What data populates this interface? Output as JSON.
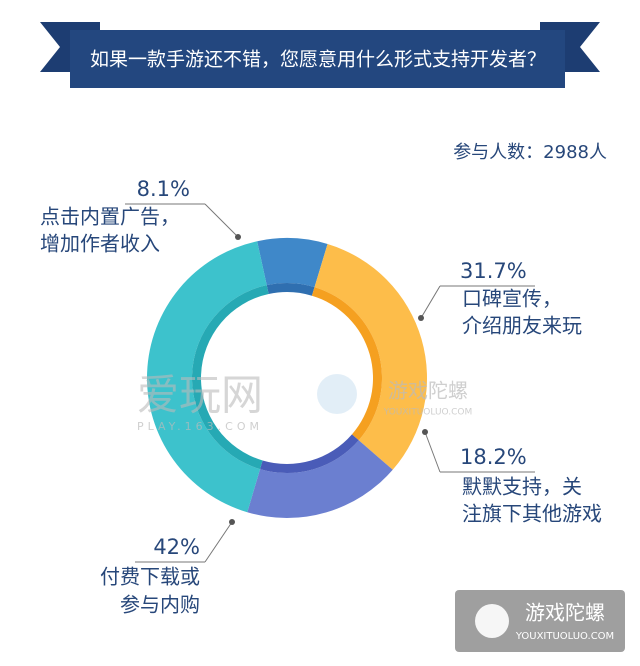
{
  "chart_data": {
    "type": "donut",
    "title": "如果一款手游还不错，您愿意用什么形式支持开发者？",
    "subtitle": "参与人数：2988人",
    "categories": [
      [
        "点击内置广告，",
        "增加作者收入"
      ],
      [
        "口碑宣传，",
        "介绍朋友来玩"
      ],
      [
        "默默支持，关",
        "注旗下其他游戏"
      ],
      [
        "付费下载或",
        "参与内购"
      ]
    ],
    "values": [
      8.1,
      31.7,
      18.2,
      42
    ],
    "value_labels": [
      "8.1%",
      "31.7%",
      "18.2%",
      "42%"
    ],
    "colors": [
      "#3f88c9",
      "#fdbd4a",
      "#6b7fd0",
      "#3dc2cc"
    ],
    "inner_colors": [
      "#2f6fb0",
      "#f5a020",
      "#4a5cb8",
      "#26a9b4"
    ],
    "watermarks": [
      "爱玩网",
      "PLAY.163.COM",
      "游戏陀螺",
      "YOUXITUOLUO.COM"
    ],
    "logo": [
      "游戏陀螺",
      "YOUXITUOLUO.COM"
    ]
  }
}
